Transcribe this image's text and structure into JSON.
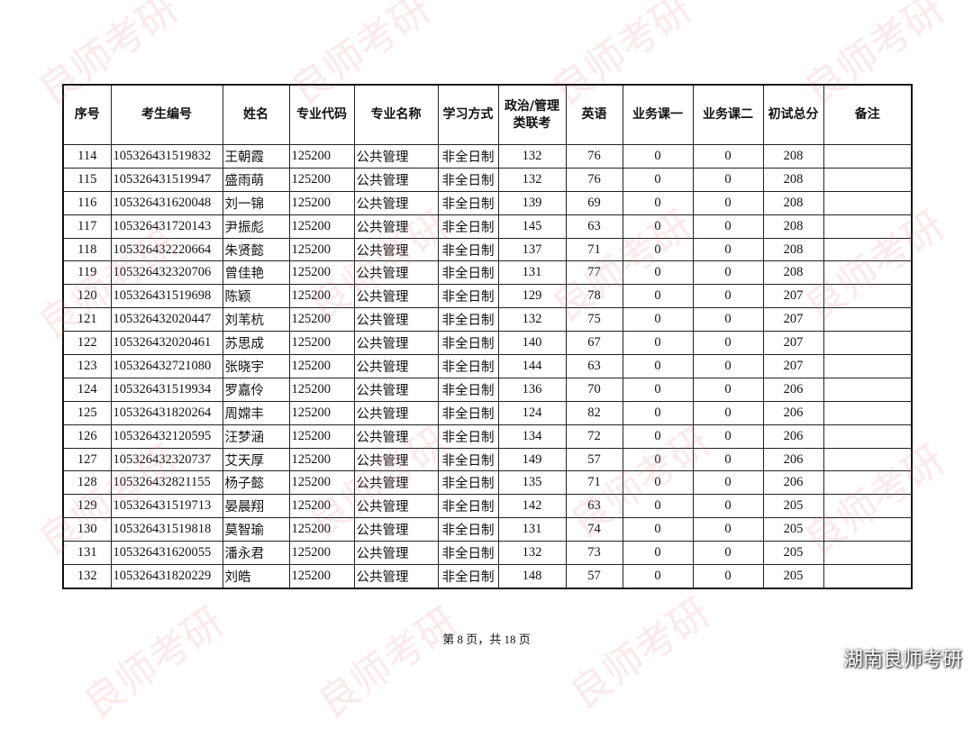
{
  "watermark": "良师考研",
  "brand": "湖南良师考研",
  "table": {
    "headers": [
      "序号",
      "考生编号",
      "姓名",
      "专业代码",
      "专业名称",
      "学习方式",
      "政治/管理\n类联考",
      "英语",
      "业务课一",
      "业务课二",
      "初试总分",
      "备注"
    ],
    "rows": [
      [
        "114",
        "105326431519832",
        "王朝霞",
        "125200",
        "公共管理",
        "非全日制",
        "132",
        "76",
        "0",
        "0",
        "208",
        ""
      ],
      [
        "115",
        "105326431519947",
        "盛雨萌",
        "125200",
        "公共管理",
        "非全日制",
        "132",
        "76",
        "0",
        "0",
        "208",
        ""
      ],
      [
        "116",
        "105326431620048",
        "刘一锦",
        "125200",
        "公共管理",
        "非全日制",
        "139",
        "69",
        "0",
        "0",
        "208",
        ""
      ],
      [
        "117",
        "105326431720143",
        "尹振彪",
        "125200",
        "公共管理",
        "非全日制",
        "145",
        "63",
        "0",
        "0",
        "208",
        ""
      ],
      [
        "118",
        "105326432220664",
        "朱贤懿",
        "125200",
        "公共管理",
        "非全日制",
        "137",
        "71",
        "0",
        "0",
        "208",
        ""
      ],
      [
        "119",
        "105326432320706",
        "曾佳艳",
        "125200",
        "公共管理",
        "非全日制",
        "131",
        "77",
        "0",
        "0",
        "208",
        ""
      ],
      [
        "120",
        "105326431519698",
        "陈颖",
        "125200",
        "公共管理",
        "非全日制",
        "129",
        "78",
        "0",
        "0",
        "207",
        ""
      ],
      [
        "121",
        "105326432020447",
        "刘苇杭",
        "125200",
        "公共管理",
        "非全日制",
        "132",
        "75",
        "0",
        "0",
        "207",
        ""
      ],
      [
        "122",
        "105326432020461",
        "苏思成",
        "125200",
        "公共管理",
        "非全日制",
        "140",
        "67",
        "0",
        "0",
        "207",
        ""
      ],
      [
        "123",
        "105326432721080",
        "张晓宇",
        "125200",
        "公共管理",
        "非全日制",
        "144",
        "63",
        "0",
        "0",
        "207",
        ""
      ],
      [
        "124",
        "105326431519934",
        "罗嘉伶",
        "125200",
        "公共管理",
        "非全日制",
        "136",
        "70",
        "0",
        "0",
        "206",
        ""
      ],
      [
        "125",
        "105326431820264",
        "周嫦丰",
        "125200",
        "公共管理",
        "非全日制",
        "124",
        "82",
        "0",
        "0",
        "206",
        ""
      ],
      [
        "126",
        "105326432120595",
        "汪梦涵",
        "125200",
        "公共管理",
        "非全日制",
        "134",
        "72",
        "0",
        "0",
        "206",
        ""
      ],
      [
        "127",
        "105326432320737",
        "艾天厚",
        "125200",
        "公共管理",
        "非全日制",
        "149",
        "57",
        "0",
        "0",
        "206",
        ""
      ],
      [
        "128",
        "105326432821155",
        "杨子懿",
        "125200",
        "公共管理",
        "非全日制",
        "135",
        "71",
        "0",
        "0",
        "206",
        ""
      ],
      [
        "129",
        "105326431519713",
        "晏晨翔",
        "125200",
        "公共管理",
        "非全日制",
        "142",
        "63",
        "0",
        "0",
        "205",
        ""
      ],
      [
        "130",
        "105326431519818",
        "莫智瑜",
        "125200",
        "公共管理",
        "非全日制",
        "131",
        "74",
        "0",
        "0",
        "205",
        ""
      ],
      [
        "131",
        "105326431620055",
        "潘永君",
        "125200",
        "公共管理",
        "非全日制",
        "132",
        "73",
        "0",
        "0",
        "205",
        ""
      ],
      [
        "132",
        "105326431820229",
        "刘皓",
        "125200",
        "公共管理",
        "非全日制",
        "148",
        "57",
        "0",
        "0",
        "205",
        ""
      ]
    ]
  },
  "footer": "第 8 页，共 18 页"
}
